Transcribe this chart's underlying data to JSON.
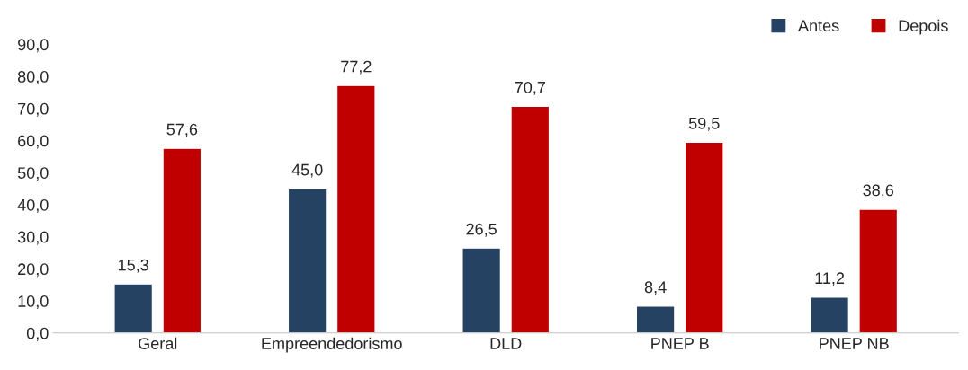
{
  "chart_data": {
    "type": "bar",
    "categories": [
      "Geral",
      "Empreendedorismo",
      "DLD",
      "PNEP B",
      "PNEP NB"
    ],
    "series": [
      {
        "name": "Antes",
        "color": "#264263",
        "values": [
          15.3,
          45.0,
          26.5,
          8.4,
          11.2
        ],
        "value_labels": [
          "15,3",
          "45,0",
          "26,5",
          "8,4",
          "11,2"
        ]
      },
      {
        "name": "Depois",
        "color": "#c00000",
        "values": [
          57.6,
          77.2,
          70.7,
          59.5,
          38.6
        ],
        "value_labels": [
          "57,6",
          "77,2",
          "70,7",
          "59,5",
          "38,6"
        ]
      }
    ],
    "ylim": [
      0,
      90
    ],
    "yticks": [
      {
        "value": 0,
        "label": "0,0"
      },
      {
        "value": 10,
        "label": "10,0"
      },
      {
        "value": 20,
        "label": "20,0"
      },
      {
        "value": 30,
        "label": "30,0"
      },
      {
        "value": 40,
        "label": "40,0"
      },
      {
        "value": 50,
        "label": "50,0"
      },
      {
        "value": 60,
        "label": "60,0"
      },
      {
        "value": 70,
        "label": "70,0"
      },
      {
        "value": 80,
        "label": "80,0"
      },
      {
        "value": 90,
        "label": "90,0"
      }
    ],
    "grid": false,
    "legend": "top right"
  }
}
